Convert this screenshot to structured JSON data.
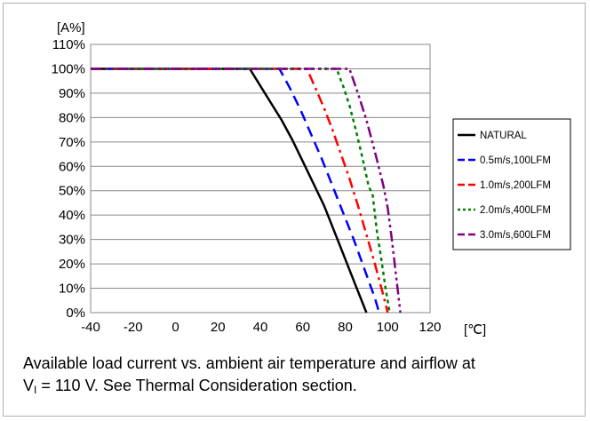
{
  "chart_data": {
    "type": "line",
    "y_unit_label": "[A%]",
    "x_unit_label": "[℃]",
    "xlim": [
      -40,
      120
    ],
    "ylim": [
      0,
      110
    ],
    "x_ticks": [
      "-40",
      "-20",
      "0",
      "20",
      "40",
      "60",
      "80",
      "100",
      "120"
    ],
    "y_ticks": [
      "0%",
      "10%",
      "20%",
      "30%",
      "40%",
      "50%",
      "60%",
      "70%",
      "80%",
      "90%",
      "100%",
      "110%"
    ],
    "grid": "horizontal",
    "legend_position": "right",
    "series": [
      {
        "name": "NATURAL",
        "color": "#000000",
        "dash": "solid",
        "x": [
          -40,
          35,
          40,
          45,
          50,
          55,
          60,
          65,
          70,
          75,
          80,
          85,
          90
        ],
        "y": [
          100,
          100,
          93,
          86,
          79,
          71,
          62,
          53,
          44,
          33,
          22,
          11,
          0
        ]
      },
      {
        "name": "0.5m/s,100LFM",
        "color": "#0000ff",
        "dash": "dash",
        "x": [
          -40,
          49,
          54,
          59,
          64,
          69,
          74,
          79,
          84,
          89,
          94,
          96
        ],
        "y": [
          100,
          100,
          92,
          83,
          73,
          63,
          52,
          41,
          30,
          18,
          6,
          0
        ]
      },
      {
        "name": "1.0m/s,200LFM",
        "color": "#ff0000",
        "dash": "dashdot",
        "x": [
          -40,
          62,
          66,
          70,
          74,
          78,
          82,
          86,
          90,
          94,
          98,
          100
        ],
        "y": [
          100,
          100,
          92,
          84,
          75,
          65,
          55,
          44,
          32,
          20,
          7,
          0
        ]
      },
      {
        "name": "2.0m/s,400LFM",
        "color": "#008000",
        "dash": "dot",
        "x": [
          -40,
          76,
          79,
          82,
          85,
          88,
          91,
          93,
          95,
          97,
          99,
          101
        ],
        "y": [
          100,
          100,
          93,
          85,
          75,
          64,
          52,
          48,
          33,
          22,
          10,
          0
        ]
      },
      {
        "name": "3.0m/s,600LFM",
        "color": "#800080",
        "dash": "dashdotdot",
        "x": [
          -40,
          82,
          86,
          90,
          94,
          98,
          100,
          102,
          104,
          106
        ],
        "y": [
          100,
          100,
          90,
          79,
          66,
          52,
          43,
          30,
          15,
          0
        ]
      }
    ]
  },
  "caption": {
    "line1": "Available load current vs. ambient air temperature and airflow at",
    "v_symbol": "V",
    "v_sub": "I",
    "line2_rest": " = 110 V. See Thermal Consideration section."
  }
}
